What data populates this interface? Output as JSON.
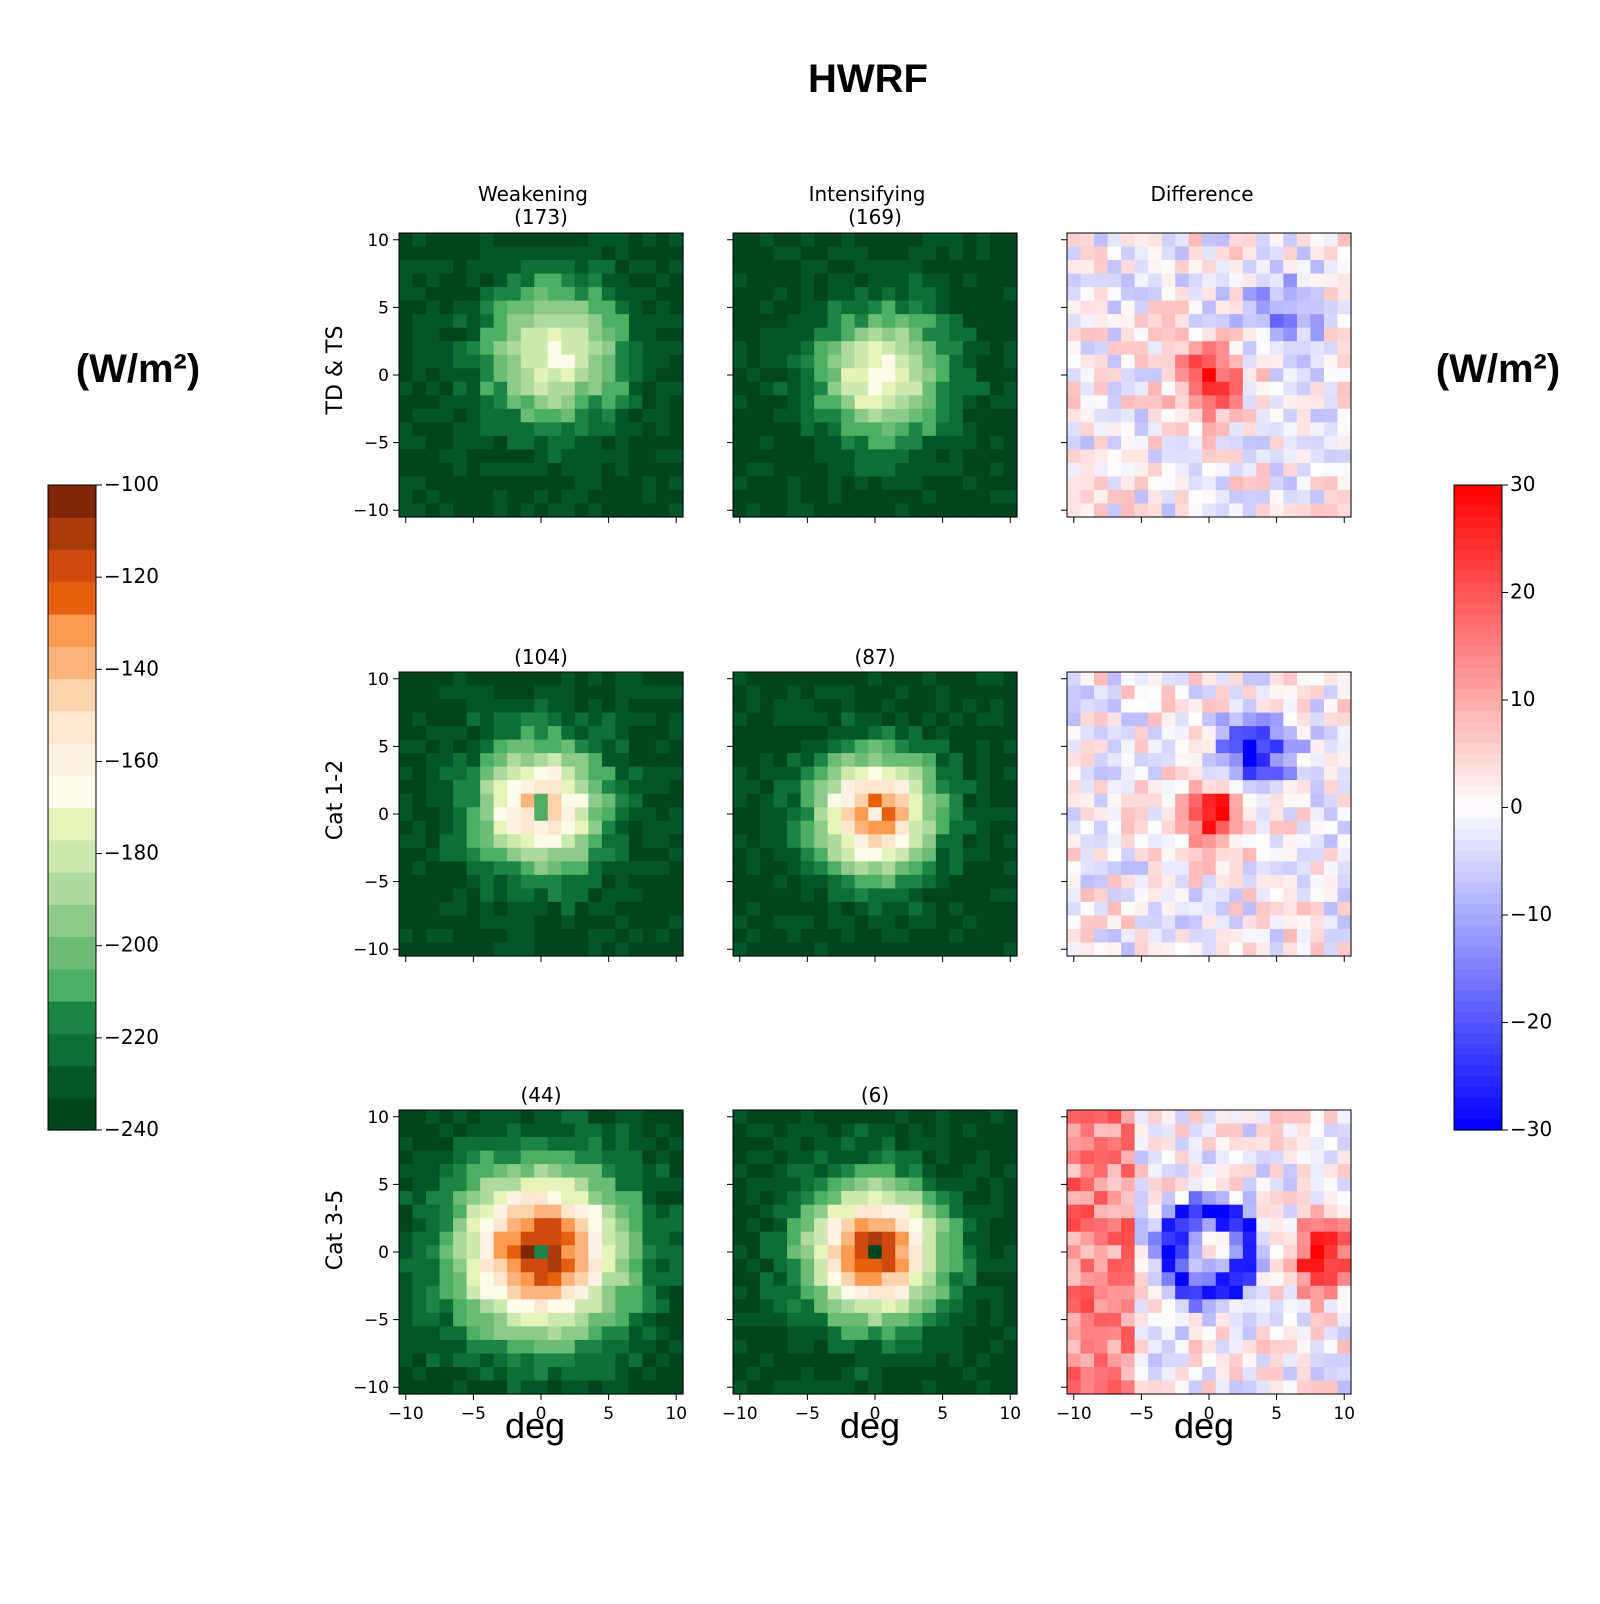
{
  "title": "HWRF",
  "left_unit": "(W/m²)",
  "right_unit": "(W/m²)",
  "chart_data": {
    "type": "heatmap",
    "title": "HWRF",
    "xlabel": "deg",
    "ylabel": "",
    "xlim": [
      -10,
      10
    ],
    "ylim": [
      -10,
      10
    ],
    "x_ticks": [
      "−10",
      "−5",
      "0",
      "5",
      "10"
    ],
    "y_ticks": [
      "10",
      "5",
      "0",
      "−5",
      "−10"
    ],
    "columns": [
      "Weakening",
      "Intensifying",
      "Difference"
    ],
    "rows": [
      "TD & TS",
      "Cat 1-2",
      "Cat 3-5"
    ],
    "panels": [
      {
        "row": "TD & TS",
        "column": "Weakening",
        "count": "(173)",
        "center_value": -168,
        "center": [
          1,
          1.5
        ],
        "spread": 3.5,
        "eye": null
      },
      {
        "row": "TD & TS",
        "column": "Intensifying",
        "count": "(169)",
        "center_value": -164,
        "center": [
          0.5,
          0
        ],
        "spread": 3.2,
        "eye": null
      },
      {
        "row": "TD & TS",
        "column": "Difference",
        "count": "",
        "max_value": 30,
        "center": [
          0,
          -0.5
        ],
        "min_value": -16,
        "min_center": [
          5.5,
          4.5
        ]
      },
      {
        "row": "Cat 1-2",
        "column": "Weakening",
        "count": "(104)",
        "center_value": -140,
        "center": [
          0,
          0.5
        ],
        "spread": 3.2,
        "eye": -210
      },
      {
        "row": "Cat 1-2",
        "column": "Intensifying",
        "count": "(87)",
        "center_value": -125,
        "center": [
          0,
          0
        ],
        "spread": 3.0,
        "eye": -160
      },
      {
        "row": "Cat 1-2",
        "column": "Difference",
        "count": "",
        "max_value": 28,
        "center": [
          0.5,
          0
        ],
        "min_value": -30,
        "min_center": [
          3.5,
          4.5
        ]
      },
      {
        "row": "Cat 3-5",
        "column": "Weakening",
        "count": "(44)",
        "center_value": -110,
        "center": [
          0,
          0
        ],
        "spread": 4.2,
        "eye": -215
      },
      {
        "row": "Cat 3-5",
        "column": "Intensifying",
        "count": "(6)",
        "center_value": -112,
        "center": [
          0,
          0
        ],
        "spread": 3.4,
        "eye": -235
      },
      {
        "row": "Cat 3-5",
        "column": "Difference",
        "count": "",
        "max_value": 30,
        "center": [
          8.5,
          -0.5
        ],
        "min_value": -30,
        "min_center": [
          0,
          0
        ]
      }
    ],
    "colorbar_left": {
      "ticks": [
        "−100",
        "−120",
        "−140",
        "−160",
        "−180",
        "−200",
        "−220",
        "−240"
      ],
      "range": [
        -240,
        -100
      ],
      "levels": 20,
      "colors": [
        "#00441b",
        "#03562a",
        "#0d6e37",
        "#1c8446",
        "#329a55",
        "#4daf62",
        "#6bbd73",
        "#8dcc88",
        "#aeda9b",
        "#cde9ad",
        "#e7f4b8",
        "#f6fbcf",
        "#fdfbe9",
        "#fdf2e5",
        "#fde7d0",
        "#fdd3ac",
        "#fdb47c",
        "#fd9a4f",
        "#f77c24",
        "#e8600d",
        "#d0490f",
        "#a93b0c",
        "#7f2704"
      ]
    },
    "colorbar_right": {
      "ticks": [
        "30",
        "20",
        "10",
        "0",
        "−10",
        "−20",
        "−30"
      ],
      "range": [
        -30,
        30
      ]
    }
  }
}
